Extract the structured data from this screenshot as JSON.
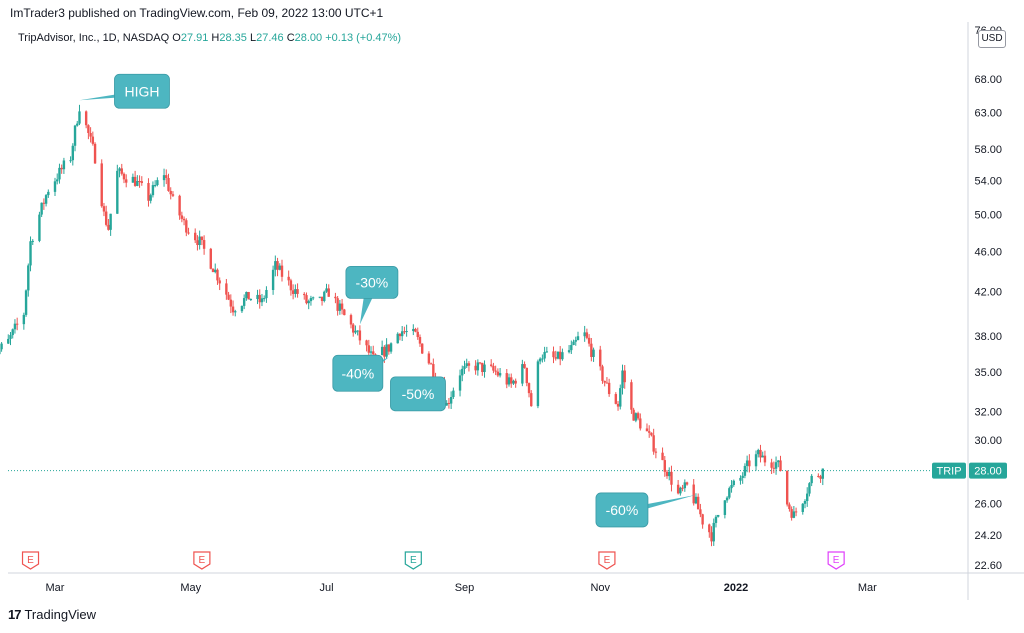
{
  "publisher_line": "ImTrader3 published on TradingView.com, Feb 09, 2022 13:00 UTC+1",
  "legend": {
    "title": "TripAdvisor, Inc., 1D, NASDAQ",
    "o_label": "O",
    "o_value": "27.91",
    "h_label": "H",
    "h_value": "28.35",
    "l_label": "L",
    "l_value": "27.46",
    "c_label": "C",
    "c_value": "28.00",
    "change": "+0.13 (+0.47%)"
  },
  "currency_button": "USD",
  "footer": {
    "logo_glyph": "17",
    "brand": "TradingView"
  },
  "colors": {
    "up": "#26a69a",
    "down": "#ef5350",
    "callout": "#4db6c1",
    "price_label": "#26a69a",
    "earn_red": "#ef5350",
    "earn_green": "#26a69a",
    "earn_magenta": "#e040fb"
  },
  "chart_data": {
    "type": "candlestick",
    "symbol": "TRIP",
    "last_price": "28.00",
    "y_scale": "log",
    "ylim": [
      22.0,
      76.0
    ],
    "y_ticks": [
      "76.00",
      "68.00",
      "63.00",
      "58.00",
      "54.00",
      "50.00",
      "46.00",
      "42.00",
      "38.00",
      "35.00",
      "32.00",
      "30.00",
      "26.00",
      "24.20",
      "22.60"
    ],
    "x_ticks": [
      "Mar",
      "May",
      "Jul",
      "Sep",
      "Nov",
      "2022",
      "Mar"
    ],
    "anchors": [
      [
        "2021-02-01",
        36.3
      ],
      [
        "2021-02-08",
        37.5
      ],
      [
        "2021-02-15",
        40
      ],
      [
        "2021-02-18",
        47
      ],
      [
        "2021-02-22",
        50
      ],
      [
        "2021-02-26",
        53
      ],
      [
        "2021-03-03",
        55
      ],
      [
        "2021-03-08",
        57
      ],
      [
        "2021-03-12",
        64
      ],
      [
        "2021-03-16",
        60
      ],
      [
        "2021-03-19",
        57
      ],
      [
        "2021-03-23",
        50
      ],
      [
        "2021-03-25",
        48.5
      ],
      [
        "2021-03-29",
        55
      ],
      [
        "2021-04-06",
        54
      ],
      [
        "2021-04-12",
        52
      ],
      [
        "2021-04-19",
        55
      ],
      [
        "2021-04-23",
        51.5
      ],
      [
        "2021-04-28",
        49
      ],
      [
        "2021-05-05",
        47
      ],
      [
        "2021-05-12",
        44
      ],
      [
        "2021-05-20",
        40.5
      ],
      [
        "2021-05-27",
        41.5
      ],
      [
        "2021-06-02",
        41
      ],
      [
        "2021-06-08",
        44.5
      ],
      [
        "2021-06-15",
        42.5
      ],
      [
        "2021-06-22",
        41
      ],
      [
        "2021-06-28",
        41
      ],
      [
        "2021-07-02",
        42
      ],
      [
        "2021-07-08",
        40
      ],
      [
        "2021-07-15",
        38
      ],
      [
        "2021-07-22",
        36
      ],
      [
        "2021-07-29",
        37
      ],
      [
        "2021-08-03",
        38.5
      ],
      [
        "2021-08-10",
        38
      ],
      [
        "2021-08-17",
        35.5
      ],
      [
        "2021-08-24",
        32.5
      ],
      [
        "2021-08-30",
        35
      ],
      [
        "2021-09-06",
        35.5
      ],
      [
        "2021-09-15",
        35
      ],
      [
        "2021-09-22",
        34
      ],
      [
        "2021-09-28",
        35.5
      ],
      [
        "2021-10-01",
        32.5
      ],
      [
        "2021-10-05",
        36.5
      ],
      [
        "2021-10-12",
        36
      ],
      [
        "2021-10-20",
        37
      ],
      [
        "2021-10-24",
        38.5
      ],
      [
        "2021-11-01",
        35
      ],
      [
        "2021-11-05",
        33.5
      ],
      [
        "2021-11-09",
        32.5
      ],
      [
        "2021-11-11",
        35
      ],
      [
        "2021-11-15",
        32
      ],
      [
        "2021-11-22",
        30.5
      ],
      [
        "2021-11-29",
        28.5
      ],
      [
        "2021-12-01",
        28
      ],
      [
        "2021-12-06",
        26.5
      ],
      [
        "2021-12-10",
        27
      ],
      [
        "2021-12-14",
        26
      ],
      [
        "2021-12-17",
        25
      ],
      [
        "2021-12-21",
        24.2
      ],
      [
        "2021-12-27",
        26.5
      ],
      [
        "2022-01-03",
        27.5
      ],
      [
        "2022-01-07",
        28.5
      ],
      [
        "2022-01-11",
        29
      ],
      [
        "2022-01-14",
        28.7
      ],
      [
        "2022-01-19",
        28.5
      ],
      [
        "2022-01-21",
        28.1
      ],
      [
        "2022-01-24",
        26
      ],
      [
        "2022-01-27",
        25.3
      ],
      [
        "2022-02-01",
        26.5
      ],
      [
        "2022-02-04",
        27.5
      ],
      [
        "2022-02-09",
        28.0
      ]
    ],
    "annotations": [
      {
        "label": "HIGH",
        "date": "2021-03-12",
        "price": 64.8
      },
      {
        "label": "-30%",
        "date": "2021-07-16",
        "price": 39.0
      },
      {
        "label": "-40%",
        "date": "2021-07-29",
        "price": 36.2
      },
      {
        "label": "-50%",
        "date": "2021-08-23",
        "price": 32.5
      },
      {
        "label": "-60%",
        "date": "2021-12-14",
        "price": 26.5
      }
    ],
    "earnings_markers": [
      {
        "label": "E",
        "date": "2021-02-18",
        "color": "red"
      },
      {
        "label": "E",
        "date": "2021-05-06",
        "color": "red"
      },
      {
        "label": "E",
        "date": "2021-08-09",
        "color": "green"
      },
      {
        "label": "E",
        "date": "2021-11-04",
        "color": "red"
      },
      {
        "label": "E",
        "date": "2022-02-15",
        "color": "magenta"
      }
    ]
  }
}
